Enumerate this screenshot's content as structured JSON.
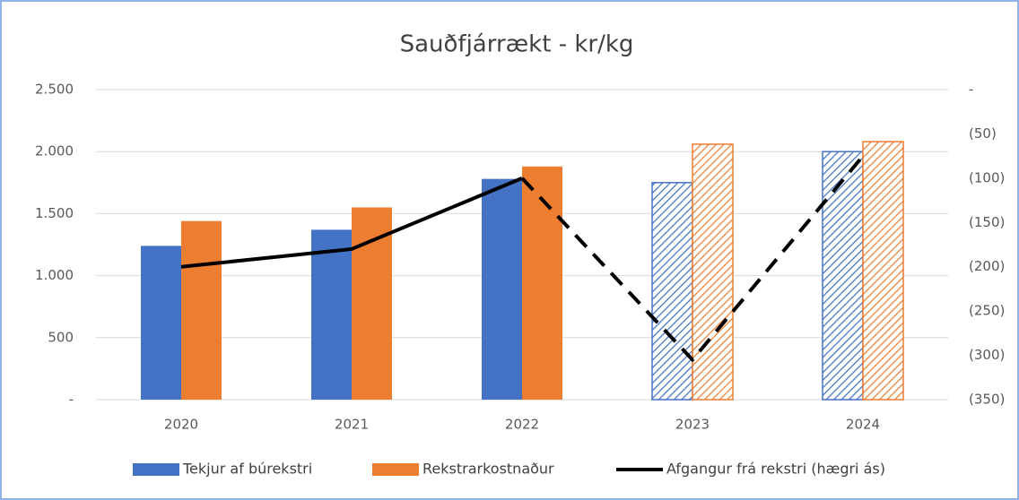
{
  "chart_data": {
    "type": "bar",
    "title": "Sauðfjárrækt - kr/kg",
    "categories": [
      "2020",
      "2021",
      "2022",
      "2023",
      "2024"
    ],
    "series": [
      {
        "name": "Tekjur af búrekstri",
        "color": "#4472c4",
        "values": [
          1240,
          1370,
          1780,
          1750,
          2000
        ],
        "hatched": [
          false,
          false,
          false,
          true,
          true
        ]
      },
      {
        "name": "Rekstrarkostnaður",
        "color": "#ed7d31",
        "values": [
          1440,
          1550,
          1880,
          2060,
          2080
        ],
        "hatched": [
          false,
          false,
          false,
          true,
          true
        ]
      },
      {
        "name": "Afgangur frá rekstri (hægri ás)",
        "type": "line",
        "axis": "y2",
        "color": "#000000",
        "values": [
          -200,
          -180,
          -100,
          -305,
          -75
        ],
        "dashed": [
          false,
          false,
          false,
          true,
          true
        ]
      }
    ],
    "ylim": [
      0,
      2500
    ],
    "yticks": [
      {
        "value": 0,
        "label": "-"
      },
      500,
      {
        "value": 1000,
        "label": "1.000"
      },
      {
        "value": 1500,
        "label": "1.500"
      },
      {
        "value": 2000,
        "label": "2.000"
      },
      {
        "value": 2500,
        "label": "2.500"
      }
    ],
    "y2lim": [
      -350,
      0
    ],
    "y2ticks": [
      {
        "value": 0,
        "label": "-"
      },
      {
        "value": -50,
        "label": "(50)"
      },
      {
        "value": -100,
        "label": "(100)"
      },
      {
        "value": -150,
        "label": "(150)"
      },
      {
        "value": -200,
        "label": "(200)"
      },
      {
        "value": -250,
        "label": "(250)"
      },
      {
        "value": -300,
        "label": "(300)"
      },
      {
        "value": -350,
        "label": "(350)"
      }
    ],
    "grid": true,
    "legend": "bottom"
  }
}
